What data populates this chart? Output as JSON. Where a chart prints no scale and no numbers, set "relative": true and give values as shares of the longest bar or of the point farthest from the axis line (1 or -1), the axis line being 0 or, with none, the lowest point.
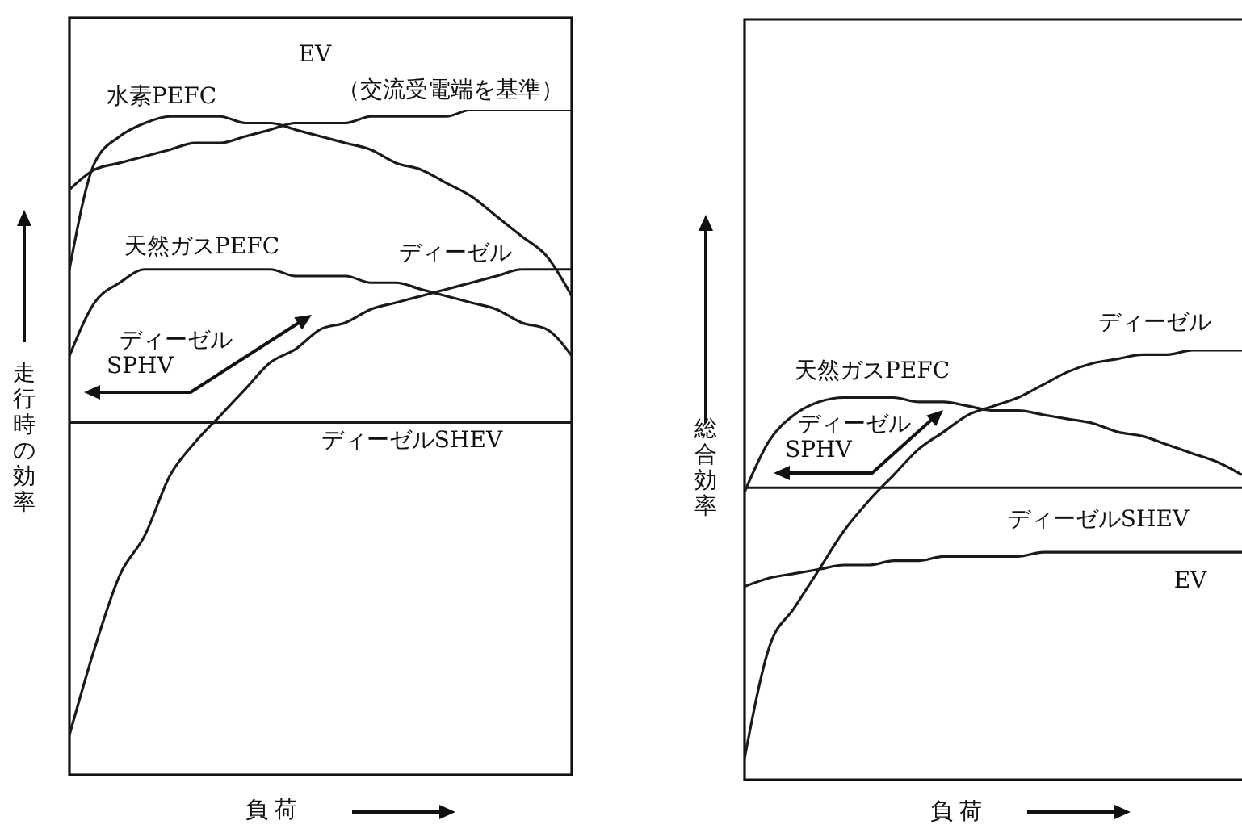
{
  "chart_data": [
    {
      "type": "line",
      "relative": true,
      "ylabel": "走行時の効率",
      "xlabel": "負 荷",
      "categories": [
        null,
        null,
        null,
        null,
        null,
        null,
        null,
        null,
        null,
        null,
        null,
        null,
        null,
        null,
        null,
        null,
        null,
        null,
        null,
        null,
        null
      ],
      "series": [
        {
          "name": "EV",
          "color": "#1a1a1a",
          "values": [
            0.88,
            0.91,
            0.92,
            0.93,
            0.94,
            0.95,
            0.95,
            0.96,
            0.97,
            0.98,
            0.98,
            0.98,
            0.99,
            0.99,
            0.99,
            0.99,
            1.0,
            1.0,
            1.0,
            1.0,
            1.0
          ]
        },
        {
          "name": "水素PEFC",
          "color": "#1a1a1a",
          "values": [
            0.76,
            0.92,
            0.96,
            0.98,
            0.99,
            0.99,
            0.99,
            0.98,
            0.98,
            0.97,
            0.96,
            0.95,
            0.94,
            0.92,
            0.91,
            0.89,
            0.87,
            0.84,
            0.81,
            0.78,
            0.72
          ]
        },
        {
          "name": "天然ガスPEFC",
          "color": "#1a1a1a",
          "values": [
            0.63,
            0.71,
            0.74,
            0.76,
            0.76,
            0.76,
            0.76,
            0.76,
            0.76,
            0.75,
            0.75,
            0.75,
            0.74,
            0.74,
            0.73,
            0.72,
            0.71,
            0.7,
            0.68,
            0.67,
            0.63
          ]
        },
        {
          "name": "ディーゼル",
          "color": "#1a1a1a",
          "values": [
            0.06,
            0.19,
            0.3,
            0.36,
            0.45,
            0.5,
            0.54,
            0.58,
            0.62,
            0.64,
            0.67,
            0.68,
            0.7,
            0.71,
            0.72,
            0.73,
            0.74,
            0.75,
            0.76,
            0.76,
            0.76
          ]
        },
        {
          "name": "ディーゼルSHEV",
          "color": "#1a1a1a",
          "values": [
            0.53,
            0.53,
            0.53,
            0.53,
            0.53,
            0.53,
            0.53,
            0.53,
            0.53,
            0.53,
            0.53,
            0.53,
            0.53,
            0.53,
            0.53,
            0.53,
            0.53,
            0.53,
            0.53,
            0.53,
            0.53
          ]
        }
      ],
      "annotations": [
        "（交流受電端を基準）",
        "ディーゼル SPHV"
      ]
    },
    {
      "type": "line",
      "relative": true,
      "ylabel": "総合効率",
      "xlabel": "負 荷",
      "categories": [
        null,
        null,
        null,
        null,
        null,
        null,
        null,
        null,
        null,
        null,
        null,
        null,
        null,
        null,
        null,
        null,
        null,
        null,
        null,
        null,
        null
      ],
      "series": [
        {
          "name": "EV",
          "color": "#1a1a1a",
          "values": [
            0.45,
            0.47,
            0.48,
            0.49,
            0.5,
            0.5,
            0.51,
            0.51,
            0.52,
            0.52,
            0.52,
            0.52,
            0.53,
            0.53,
            0.53,
            0.53,
            0.53,
            0.53,
            0.53,
            0.53,
            0.53
          ]
        },
        {
          "name": "天然ガスPEFC",
          "color": "#1a1a1a",
          "values": [
            0.67,
            0.79,
            0.85,
            0.88,
            0.89,
            0.89,
            0.89,
            0.88,
            0.88,
            0.87,
            0.86,
            0.86,
            0.85,
            0.84,
            0.83,
            0.81,
            0.8,
            0.78,
            0.76,
            0.74,
            0.71
          ]
        },
        {
          "name": "ディーゼル",
          "color": "#1a1a1a",
          "values": [
            0.05,
            0.31,
            0.4,
            0.49,
            0.58,
            0.65,
            0.71,
            0.77,
            0.81,
            0.85,
            0.87,
            0.89,
            0.92,
            0.95,
            0.97,
            0.98,
            0.99,
            0.99,
            1.0,
            1.0,
            1.0
          ]
        },
        {
          "name": "ディーゼルSHEV",
          "color": "#1a1a1a",
          "values": [
            0.68,
            0.68,
            0.68,
            0.68,
            0.68,
            0.68,
            0.68,
            0.68,
            0.68,
            0.68,
            0.68,
            0.68,
            0.68,
            0.68,
            0.68,
            0.68,
            0.68,
            0.68,
            0.68,
            0.68,
            0.68
          ]
        }
      ],
      "annotations": [
        "ディーゼル SPHV"
      ]
    }
  ]
}
